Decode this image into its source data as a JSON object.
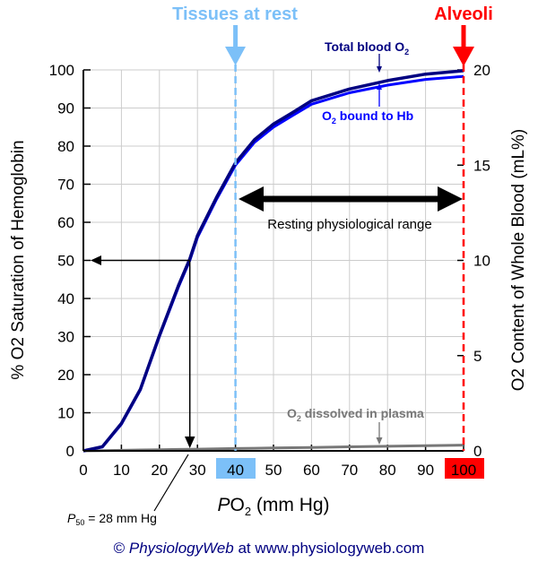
{
  "chart_data": {
    "type": "line",
    "xlabel": "PO2 (mm Hg)",
    "ylabel": "% O2 Saturation of Hemoglobin",
    "y2label": "O2 Content of Whole Blood (mL%)",
    "xlim": [
      0,
      100
    ],
    "ylim": [
      0,
      100
    ],
    "y2lim": [
      0,
      20
    ],
    "xticks": [
      "0",
      "10",
      "20",
      "30",
      "40",
      "50",
      "60",
      "70",
      "80",
      "90",
      "100"
    ],
    "yticks": [
      "0",
      "10",
      "20",
      "30",
      "40",
      "50",
      "60",
      "70",
      "80",
      "90",
      "100"
    ],
    "y2ticks": [
      "0",
      "5",
      "10",
      "15",
      "20"
    ],
    "grid": true,
    "x": [
      0,
      5,
      10,
      15,
      20,
      25,
      28,
      30,
      35,
      40,
      45,
      50,
      55,
      60,
      70,
      80,
      90,
      100
    ],
    "series": [
      {
        "name": "Total blood O2",
        "color": "#000080",
        "values": [
          0,
          1.1,
          7.2,
          16.2,
          30.3,
          43.4,
          50.4,
          56.5,
          66.5,
          75.6,
          81.7,
          85.8,
          88.8,
          91.9,
          95.0,
          97.2,
          98.9,
          99.8
        ]
      },
      {
        "name": "O2 bound to Hb",
        "color": "#0000ff",
        "values": [
          0,
          1,
          7,
          16,
          30,
          43,
          50,
          56,
          66,
          75,
          81,
          85,
          88,
          91,
          94,
          96,
          97.5,
          98.3
        ]
      },
      {
        "name": "O2 dissolved in plasma",
        "color": "#777777",
        "values": [
          0,
          0.08,
          0.15,
          0.23,
          0.3,
          0.38,
          0.42,
          0.45,
          0.53,
          0.6,
          0.68,
          0.75,
          0.83,
          0.9,
          1.05,
          1.2,
          1.35,
          1.5
        ]
      }
    ],
    "markers": {
      "tissues_label": "Tissues at rest",
      "tissues_x": 40,
      "tissues_color": "#7cc0f8",
      "alveoli_label": "Alveoli",
      "alveoli_x": 100,
      "alveoli_color": "#ff0000"
    },
    "annotations": {
      "total": "Total blood O",
      "bound_prefix": "O",
      "bound_suffix": " bound to Hb",
      "dissolved_prefix": "O",
      "dissolved_suffix": " dissolved in plasma",
      "range": "Resting physiological range",
      "p50_p": "P",
      "p50_sub": "50",
      "p50_rest": " = 28 mm Hg",
      "p50": 28,
      "sub2": "2"
    }
  },
  "footer": {
    "copyright": "© ",
    "brand": "PhysiologyWeb",
    "rest": " at www.physiologyweb.com"
  }
}
